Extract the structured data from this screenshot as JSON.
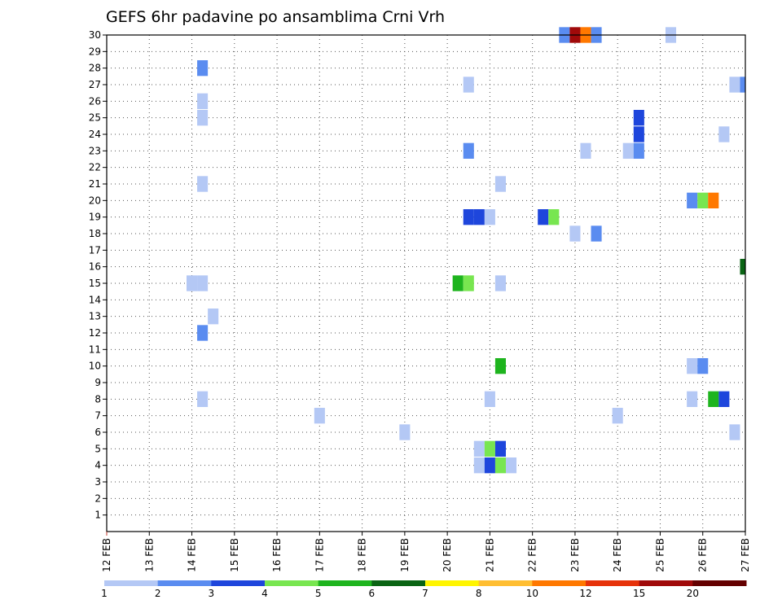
{
  "chart_data": {
    "type": "heatmap",
    "title": "GEFS 6hr padavine po ansamblima Crni Vrh",
    "xlabel": "",
    "ylabel": "",
    "x_tick_labels": [
      "12 FEB",
      "13 FEB",
      "14 FEB",
      "15 FEB",
      "16 FEB",
      "17 FEB",
      "18 FEB",
      "19 FEB",
      "20 FEB",
      "21 FEB",
      "22 FEB",
      "23 FEB",
      "24 FEB",
      "25 FEB",
      "26 FEB",
      "27 FEB"
    ],
    "y_tick_labels": [
      "1",
      "2",
      "3",
      "4",
      "5",
      "6",
      "7",
      "8",
      "9",
      "10",
      "11",
      "12",
      "13",
      "14",
      "15",
      "16",
      "17",
      "18",
      "19",
      "20",
      "21",
      "22",
      "23",
      "24",
      "25",
      "26",
      "27",
      "28",
      "29",
      "30"
    ],
    "xlim_days": [
      12,
      27
    ],
    "ylim_members": [
      0,
      30
    ],
    "grid": true,
    "legend_placement": "bottom",
    "legend_labels": [
      "1",
      "2",
      "3",
      "4",
      "5",
      "6",
      "7",
      "8",
      "10",
      "12",
      "15",
      "20"
    ],
    "color_levels": [
      "#b4c8f5",
      "#5a8cf0",
      "#1e46dc",
      "#78e650",
      "#1eb41e",
      "#0a6414",
      "#fff500",
      "#ffbe32",
      "#ff7800",
      "#e6320a",
      "#a00a0a",
      "#640000"
    ],
    "cells": [
      {
        "day": 22.75,
        "member": 30,
        "level": 1
      },
      {
        "day": 23.0,
        "member": 30,
        "level": 10
      },
      {
        "day": 23.25,
        "member": 30,
        "level": 8
      },
      {
        "day": 23.5,
        "member": 30,
        "level": 1
      },
      {
        "day": 25.25,
        "member": 30,
        "level": 0
      },
      {
        "day": 14.25,
        "member": 28,
        "level": 1
      },
      {
        "day": 20.5,
        "member": 27,
        "level": 0
      },
      {
        "day": 26.75,
        "member": 27,
        "level": 0
      },
      {
        "day": 27.0,
        "member": 27,
        "level": 1
      },
      {
        "day": 14.25,
        "member": 26,
        "level": 0
      },
      {
        "day": 14.25,
        "member": 25,
        "level": 0
      },
      {
        "day": 24.5,
        "member": 25,
        "level": 2
      },
      {
        "day": 24.5,
        "member": 24,
        "level": 2
      },
      {
        "day": 26.5,
        "member": 24,
        "level": 0
      },
      {
        "day": 20.5,
        "member": 23,
        "level": 1
      },
      {
        "day": 23.25,
        "member": 23,
        "level": 0
      },
      {
        "day": 24.25,
        "member": 23,
        "level": 0
      },
      {
        "day": 24.5,
        "member": 23,
        "level": 1
      },
      {
        "day": 14.25,
        "member": 21,
        "level": 0
      },
      {
        "day": 21.25,
        "member": 21,
        "level": 0
      },
      {
        "day": 25.75,
        "member": 20,
        "level": 1
      },
      {
        "day": 26.0,
        "member": 20,
        "level": 3
      },
      {
        "day": 26.25,
        "member": 20,
        "level": 8
      },
      {
        "day": 20.5,
        "member": 19,
        "level": 2
      },
      {
        "day": 20.75,
        "member": 19,
        "level": 2
      },
      {
        "day": 21.0,
        "member": 19,
        "level": 0
      },
      {
        "day": 22.25,
        "member": 19,
        "level": 2
      },
      {
        "day": 22.5,
        "member": 19,
        "level": 3
      },
      {
        "day": 23.0,
        "member": 18,
        "level": 0
      },
      {
        "day": 23.5,
        "member": 18,
        "level": 1
      },
      {
        "day": 27.0,
        "member": 16,
        "level": 5
      },
      {
        "day": 14.0,
        "member": 15,
        "level": 0
      },
      {
        "day": 14.25,
        "member": 15,
        "level": 0
      },
      {
        "day": 20.25,
        "member": 15,
        "level": 4
      },
      {
        "day": 20.5,
        "member": 15,
        "level": 3
      },
      {
        "day": 21.25,
        "member": 15,
        "level": 0
      },
      {
        "day": 14.5,
        "member": 13,
        "level": 0
      },
      {
        "day": 14.25,
        "member": 12,
        "level": 1
      },
      {
        "day": 21.25,
        "member": 10,
        "level": 4
      },
      {
        "day": 25.75,
        "member": 10,
        "level": 0
      },
      {
        "day": 26.0,
        "member": 10,
        "level": 1
      },
      {
        "day": 14.25,
        "member": 8,
        "level": 0
      },
      {
        "day": 21.0,
        "member": 8,
        "level": 0
      },
      {
        "day": 25.75,
        "member": 8,
        "level": 0
      },
      {
        "day": 26.25,
        "member": 8,
        "level": 4
      },
      {
        "day": 26.5,
        "member": 8,
        "level": 2
      },
      {
        "day": 17.0,
        "member": 7,
        "level": 0
      },
      {
        "day": 24.0,
        "member": 7,
        "level": 0
      },
      {
        "day": 19.0,
        "member": 6,
        "level": 0
      },
      {
        "day": 26.75,
        "member": 6,
        "level": 0
      },
      {
        "day": 20.75,
        "member": 5,
        "level": 0
      },
      {
        "day": 21.0,
        "member": 5,
        "level": 3
      },
      {
        "day": 21.25,
        "member": 5,
        "level": 2
      },
      {
        "day": 20.75,
        "member": 4,
        "level": 0
      },
      {
        "day": 21.0,
        "member": 4,
        "level": 2
      },
      {
        "day": 21.25,
        "member": 4,
        "level": 3
      },
      {
        "day": 21.5,
        "member": 4,
        "level": 0
      }
    ]
  }
}
